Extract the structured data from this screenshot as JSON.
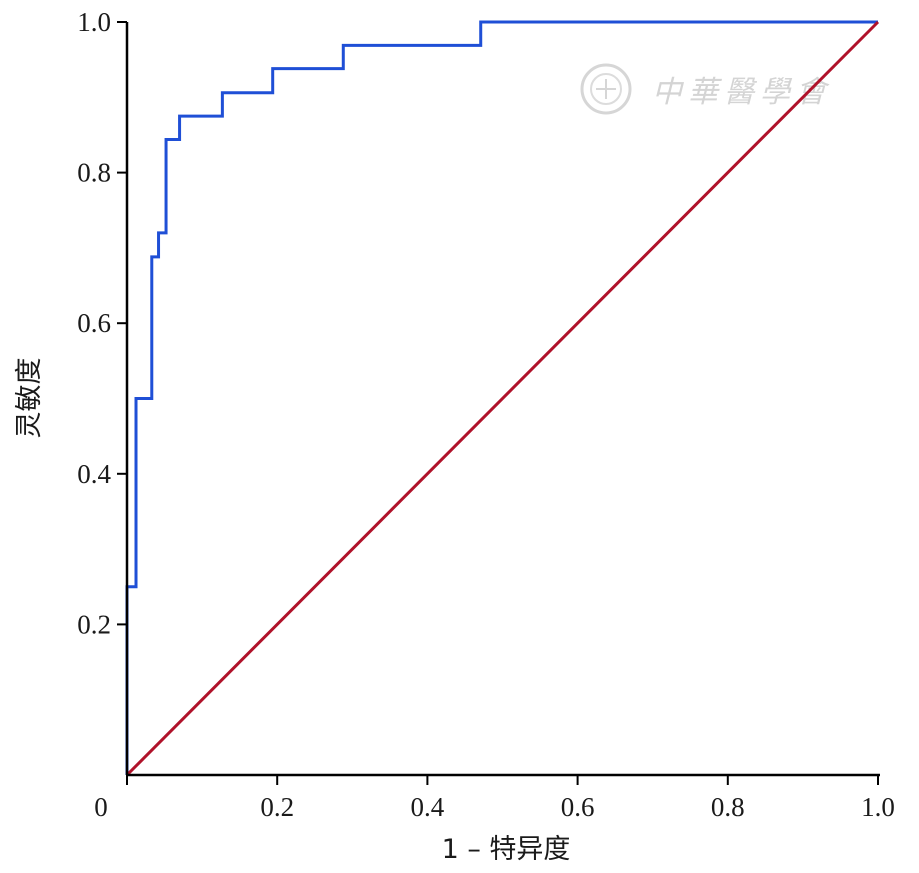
{
  "chart_data": {
    "type": "line",
    "xlabel": "1 – 特异度",
    "ylabel": "灵敏度",
    "xlim": [
      0,
      1
    ],
    "ylim": [
      0,
      1
    ],
    "x_ticks": [
      "0",
      "0.2",
      "0.4",
      "0.6",
      "0.8",
      "1.0"
    ],
    "y_ticks": [
      "0.2",
      "0.4",
      "0.6",
      "0.8",
      "1.0"
    ],
    "grid": false,
    "series": [
      {
        "color": "#1f4fd6",
        "step": true,
        "points": [
          [
            0,
            0
          ],
          [
            0,
            0.25
          ],
          [
            0.012,
            0.25
          ],
          [
            0.012,
            0.5
          ],
          [
            0.033,
            0.5
          ],
          [
            0.033,
            0.688
          ],
          [
            0.042,
            0.688
          ],
          [
            0.042,
            0.72
          ],
          [
            0.052,
            0.72
          ],
          [
            0.052,
            0.844
          ],
          [
            0.07,
            0.844
          ],
          [
            0.07,
            0.875
          ],
          [
            0.127,
            0.875
          ],
          [
            0.127,
            0.906
          ],
          [
            0.194,
            0.906
          ],
          [
            0.194,
            0.938
          ],
          [
            0.288,
            0.938
          ],
          [
            0.288,
            0.969
          ],
          [
            0.471,
            0.969
          ],
          [
            0.471,
            1.0
          ],
          [
            1.0,
            1.0
          ]
        ]
      },
      {
        "color": "#b0122a",
        "step": false,
        "points": [
          [
            0,
            0
          ],
          [
            1,
            1
          ]
        ]
      }
    ]
  },
  "watermark": {
    "text": "中華醫學會"
  }
}
